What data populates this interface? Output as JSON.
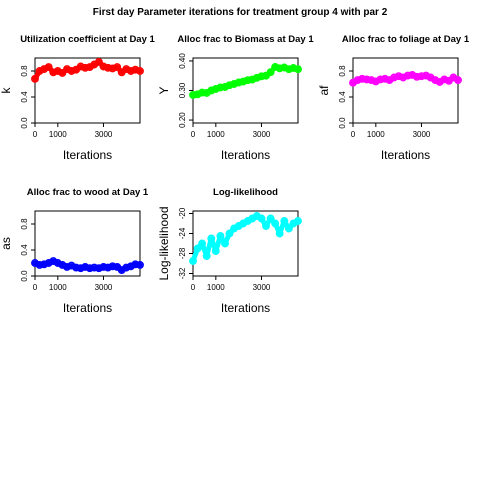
{
  "figure_title": "First day Parameter iterations for treatment group 4 with par 2",
  "chart_data": [
    {
      "type": "line",
      "title": "Utilization coefficient at Day 1",
      "xlabel": "Iterations",
      "ylabel": "k",
      "xlim": [
        0,
        4600
      ],
      "ylim": [
        0,
        1
      ],
      "xticks": [
        0,
        1000,
        3000
      ],
      "yticks": [
        0.0,
        0.4,
        0.8
      ],
      "ytick_labels": [
        "0.0",
        "0.4",
        "0.8"
      ],
      "color": "#ff0000",
      "series": [
        {
          "x": [
            0,
            200,
            400,
            600,
            800,
            1000,
            1200,
            1400,
            1600,
            1800,
            2000,
            2200,
            2400,
            2600,
            2800,
            3000,
            3200,
            3400,
            3600,
            3800,
            4000,
            4200,
            4400,
            4600
          ],
          "values": [
            0.68,
            0.8,
            0.83,
            0.86,
            0.78,
            0.8,
            0.77,
            0.83,
            0.8,
            0.82,
            0.87,
            0.85,
            0.86,
            0.9,
            0.94,
            0.87,
            0.85,
            0.84,
            0.86,
            0.78,
            0.83,
            0.8,
            0.82,
            0.8
          ]
        }
      ]
    },
    {
      "type": "line",
      "title": "Alloc frac to Biomass at Day 1",
      "xlabel": "Iterations",
      "ylabel": "Y",
      "xlim": [
        0,
        4600
      ],
      "ylim": [
        0.19,
        0.41
      ],
      "xticks": [
        0,
        1000,
        3000
      ],
      "yticks": [
        0.2,
        0.3,
        0.4
      ],
      "ytick_labels": [
        "0.20",
        "0.30",
        "0.40"
      ],
      "color": "#00ff00",
      "series": [
        {
          "x": [
            0,
            200,
            400,
            600,
            800,
            1000,
            1200,
            1400,
            1600,
            1800,
            2000,
            2200,
            2400,
            2600,
            2800,
            3000,
            3200,
            3400,
            3600,
            3800,
            4000,
            4200,
            4400,
            4600
          ],
          "values": [
            0.285,
            0.287,
            0.293,
            0.292,
            0.3,
            0.305,
            0.31,
            0.312,
            0.318,
            0.322,
            0.327,
            0.33,
            0.335,
            0.337,
            0.343,
            0.348,
            0.35,
            0.362,
            0.38,
            0.375,
            0.378,
            0.372,
            0.376,
            0.372
          ]
        }
      ]
    },
    {
      "type": "line",
      "title": "Alloc frac to foliage at Day 1",
      "xlabel": "Iterations",
      "ylabel": "af",
      "xlim": [
        0,
        4600
      ],
      "ylim": [
        0,
        1
      ],
      "xticks": [
        0,
        1000,
        3000
      ],
      "yticks": [
        0.0,
        0.4,
        0.8
      ],
      "ytick_labels": [
        "0.0",
        "0.4",
        "0.8"
      ],
      "color": "#ff00ff",
      "series": [
        {
          "x": [
            0,
            200,
            400,
            600,
            800,
            1000,
            1200,
            1400,
            1600,
            1800,
            2000,
            2200,
            2400,
            2600,
            2800,
            3000,
            3200,
            3400,
            3600,
            3800,
            4000,
            4200,
            4400,
            4600
          ],
          "values": [
            0.62,
            0.66,
            0.68,
            0.67,
            0.66,
            0.64,
            0.67,
            0.68,
            0.66,
            0.7,
            0.72,
            0.7,
            0.73,
            0.74,
            0.71,
            0.72,
            0.73,
            0.7,
            0.66,
            0.63,
            0.67,
            0.65,
            0.7,
            0.66
          ]
        }
      ]
    },
    {
      "type": "line",
      "title": "Alloc frac to wood at Day 1",
      "xlabel": "Iterations",
      "ylabel": "as",
      "xlim": [
        0,
        4600
      ],
      "ylim": [
        0,
        1
      ],
      "xticks": [
        0,
        1000,
        3000
      ],
      "yticks": [
        0.0,
        0.4,
        0.8
      ],
      "ytick_labels": [
        "0.0",
        "0.4",
        "0.8"
      ],
      "color": "#0000ff",
      "series": [
        {
          "x": [
            0,
            200,
            400,
            600,
            800,
            1000,
            1200,
            1400,
            1600,
            1800,
            2000,
            2200,
            2400,
            2600,
            2800,
            3000,
            3200,
            3400,
            3600,
            3800,
            4000,
            4200,
            4400,
            4600
          ],
          "values": [
            0.2,
            0.17,
            0.18,
            0.2,
            0.23,
            0.2,
            0.17,
            0.14,
            0.16,
            0.13,
            0.12,
            0.14,
            0.12,
            0.13,
            0.12,
            0.14,
            0.13,
            0.15,
            0.14,
            0.09,
            0.13,
            0.15,
            0.18,
            0.17
          ]
        }
      ]
    },
    {
      "type": "line",
      "title": "Log-likelihood",
      "xlabel": "Iterations",
      "ylabel": "Log-likelihood",
      "xlim": [
        0,
        4600
      ],
      "ylim": [
        -32.5,
        -19.5
      ],
      "xticks": [
        0,
        1000,
        3000
      ],
      "yticks": [
        -20,
        -24,
        -28,
        -32
      ],
      "ytick_labels": [
        "-20",
        "-24",
        "-28",
        "-32"
      ],
      "color": "#00ffff",
      "series": [
        {
          "x": [
            0,
            200,
            400,
            600,
            800,
            1000,
            1200,
            1400,
            1600,
            1800,
            2000,
            2200,
            2400,
            2600,
            2800,
            3000,
            3200,
            3400,
            3600,
            3800,
            4000,
            4200,
            4400,
            4600
          ],
          "values": [
            -29.5,
            -27.0,
            -26.0,
            -28.5,
            -25.0,
            -27.5,
            -24.5,
            -26.0,
            -24.0,
            -23.0,
            -22.5,
            -22.0,
            -21.5,
            -21.0,
            -20.5,
            -21.0,
            -22.5,
            -21.0,
            -22.0,
            -24.0,
            -21.5,
            -23.0,
            -22.0,
            -21.5
          ]
        }
      ]
    }
  ]
}
